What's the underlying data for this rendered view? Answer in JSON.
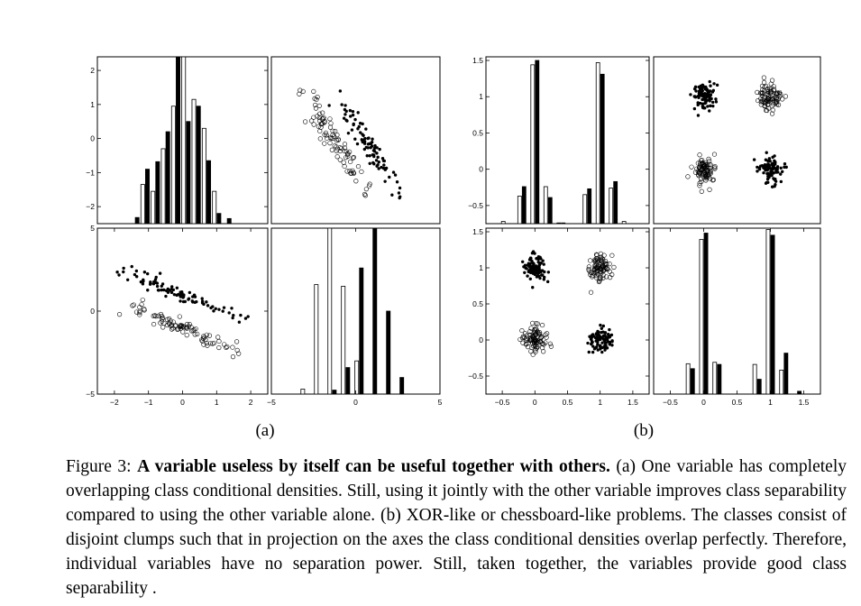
{
  "chart_data": [
    {
      "id": "a",
      "panel_label": "(a)",
      "type": "scatter-matrix",
      "classes": [
        "open circles",
        "filled dots"
      ],
      "panels": [
        {
          "pos": "top-left",
          "type": "bar",
          "x_range": [
            -2.5,
            2.5
          ],
          "y_range": [
            -2.5,
            2.4
          ],
          "y_ticks": [
            -2,
            -1,
            0,
            1,
            2
          ],
          "y_tick_labels": [
            "−2",
            "−1",
            "0",
            "1",
            "2"
          ],
          "x_ticks": [],
          "baseline": -2.5,
          "bars": [
            {
              "x": -1.4,
              "open": -2.5,
              "filled": -2.32
            },
            {
              "x": -1.1,
              "open": -1.35,
              "filled": -0.9
            },
            {
              "x": -0.8,
              "open": -1.55,
              "filled": -0.68
            },
            {
              "x": -0.5,
              "open": -0.3,
              "filled": 0.2
            },
            {
              "x": -0.2,
              "open": 0.95,
              "filled": 2.4
            },
            {
              "x": 0.1,
              "open": 2.4,
              "filled": 0.5
            },
            {
              "x": 0.4,
              "open": 1.15,
              "filled": 0.95
            },
            {
              "x": 0.7,
              "open": 0.3,
              "filled": -0.65
            },
            {
              "x": 1.0,
              "open": -1.55,
              "filled": -2.2
            },
            {
              "x": 1.3,
              "open": -2.5,
              "filled": -2.35
            }
          ]
        },
        {
          "pos": "top-right",
          "type": "scatter",
          "x_range": [
            -5,
            5
          ],
          "y_range": [
            -2.5,
            2.5
          ],
          "x_ticks": [],
          "y_ticks": [],
          "clusters": [
            {
              "style": "open",
              "n": 90,
              "x0": -3.3,
              "y0": 1.5,
              "x1": 0.7,
              "y1": -1.5,
              "spread": 0.2,
              "seed": 11
            },
            {
              "style": "filled",
              "n": 90,
              "x0": -1.3,
              "y0": 1.4,
              "x1": 2.7,
              "y1": -1.6,
              "spread": 0.2,
              "seed": 23
            }
          ]
        },
        {
          "pos": "bottom-left",
          "type": "scatter",
          "x_range": [
            -2.5,
            2.5
          ],
          "y_range": [
            -5,
            5
          ],
          "x_ticks": [
            -2,
            -1,
            0,
            1,
            2
          ],
          "x_tick_labels": [
            "−2",
            "−1",
            "0",
            "1",
            "2"
          ],
          "y_ticks": [
            -5,
            0,
            5
          ],
          "y_tick_labels": [
            "−5",
            "0",
            "5"
          ],
          "clusters": [
            {
              "style": "filled",
              "n": 90,
              "x0": -1.8,
              "y0": 2.5,
              "x1": 1.8,
              "y1": -0.5,
              "spread": 0.18,
              "seed": 37
            },
            {
              "style": "open",
              "n": 90,
              "x0": -1.5,
              "y0": 0.3,
              "x1": 1.7,
              "y1": -2.5,
              "spread": 0.18,
              "seed": 41
            }
          ]
        },
        {
          "pos": "bottom-right",
          "type": "bar",
          "x_range": [
            -5,
            5
          ],
          "y_range": [
            0,
            5
          ],
          "x_ticks": [
            -5,
            0,
            5
          ],
          "x_tick_labels": [
            "−5",
            "0",
            "5"
          ],
          "y_ticks": [],
          "baseline": 0,
          "bars": [
            {
              "x": -3.0,
              "open": 0.15,
              "filled": 0
            },
            {
              "x": -2.2,
              "open": 3.3,
              "filled": 0
            },
            {
              "x": -1.4,
              "open": 5.0,
              "filled": 0.12
            },
            {
              "x": -0.6,
              "open": 3.25,
              "filled": 0.8
            },
            {
              "x": 0.2,
              "open": 1.0,
              "filled": 3.8
            },
            {
              "x": 1.0,
              "open": 0,
              "filled": 5.0
            },
            {
              "x": 1.8,
              "open": 0,
              "filled": 2.5
            },
            {
              "x": 2.6,
              "open": 0,
              "filled": 0.5
            }
          ]
        }
      ]
    },
    {
      "id": "b",
      "panel_label": "(b)",
      "type": "scatter-matrix",
      "classes": [
        "open circles",
        "filled dots"
      ],
      "panels": [
        {
          "pos": "top-left",
          "type": "bar",
          "x_range": [
            -0.75,
            1.75
          ],
          "y_range": [
            -0.75,
            1.55
          ],
          "y_ticks": [
            -0.5,
            0,
            0.5,
            1,
            1.5
          ],
          "y_tick_labels": [
            "−0.5",
            "0",
            "0.5",
            "1",
            "1.5"
          ],
          "x_ticks": [],
          "baseline": -0.75,
          "bars": [
            {
              "x": -0.45,
              "open": -0.72,
              "filled": -0.75
            },
            {
              "x": -0.2,
              "open": -0.37,
              "filled": -0.24
            },
            {
              "x": 0.0,
              "open": 1.44,
              "filled": 1.5
            },
            {
              "x": 0.2,
              "open": -0.24,
              "filled": -0.39
            },
            {
              "x": 0.4,
              "open": -0.74,
              "filled": -0.74
            },
            {
              "x": 0.8,
              "open": -0.35,
              "filled": -0.27
            },
            {
              "x": 1.0,
              "open": 1.47,
              "filled": 1.31
            },
            {
              "x": 1.2,
              "open": -0.26,
              "filled": -0.17
            },
            {
              "x": 1.4,
              "open": -0.72,
              "filled": -0.75
            }
          ]
        },
        {
          "pos": "top-right",
          "type": "scatter",
          "x_range": [
            -0.75,
            1.75
          ],
          "y_range": [
            -0.75,
            1.55
          ],
          "x_ticks": [],
          "y_ticks": [],
          "clumps": [
            {
              "style": "filled",
              "n": 90,
              "cx": 0.0,
              "cy": 1.0,
              "sd": 0.09,
              "seed": 53
            },
            {
              "style": "open",
              "n": 90,
              "cx": 1.0,
              "cy": 1.0,
              "sd": 0.09,
              "seed": 59
            },
            {
              "style": "open",
              "n": 90,
              "cx": 0.0,
              "cy": 0.0,
              "sd": 0.09,
              "seed": 61
            },
            {
              "style": "filled",
              "n": 90,
              "cx": 1.0,
              "cy": 0.0,
              "sd": 0.09,
              "seed": 67
            }
          ]
        },
        {
          "pos": "bottom-left",
          "type": "scatter",
          "x_range": [
            -0.75,
            1.75
          ],
          "y_range": [
            -0.75,
            1.55
          ],
          "x_ticks": [
            -0.5,
            0,
            0.5,
            1,
            1.5
          ],
          "x_tick_labels": [
            "−0.5",
            "0",
            "0.5",
            "1",
            "1.5"
          ],
          "y_ticks": [
            -0.5,
            0,
            0.5,
            1,
            1.5
          ],
          "y_tick_labels": [
            "−0.5",
            "0",
            "0.5",
            "1",
            "1.5"
          ],
          "clumps": [
            {
              "style": "filled",
              "n": 90,
              "cx": 0.0,
              "cy": 1.0,
              "sd": 0.09,
              "seed": 71
            },
            {
              "style": "open",
              "n": 90,
              "cx": 1.0,
              "cy": 1.0,
              "sd": 0.09,
              "seed": 73
            },
            {
              "style": "open",
              "n": 90,
              "cx": 0.0,
              "cy": 0.0,
              "sd": 0.09,
              "seed": 79
            },
            {
              "style": "filled",
              "n": 90,
              "cx": 1.0,
              "cy": 0.0,
              "sd": 0.09,
              "seed": 83
            }
          ]
        },
        {
          "pos": "bottom-right",
          "type": "bar",
          "x_range": [
            -0.75,
            1.75
          ],
          "y_range": [
            -0.75,
            1.6
          ],
          "x_ticks": [
            -0.5,
            0,
            0.5,
            1,
            1.5
          ],
          "x_tick_labels": [
            "−0.5",
            "0",
            "0.5",
            "1",
            "1.5"
          ],
          "y_ticks": [],
          "baseline": -0.75,
          "bars": [
            {
              "x": -0.2,
              "open": -0.32,
              "filled": -0.39
            },
            {
              "x": 0.0,
              "open": 1.44,
              "filled": 1.53
            },
            {
              "x": 0.2,
              "open": -0.3,
              "filled": -0.33
            },
            {
              "x": 0.8,
              "open": -0.33,
              "filled": -0.54
            },
            {
              "x": 1.0,
              "open": 1.58,
              "filled": 1.5
            },
            {
              "x": 1.2,
              "open": -0.41,
              "filled": -0.17
            },
            {
              "x": 1.4,
              "open": -0.75,
              "filled": -0.71
            }
          ]
        }
      ]
    }
  ],
  "caption": {
    "prefix": "Figure 3: ",
    "bold": "A variable useless by itself can be useful together with others.",
    "body": " (a) One variable has completely overlapping class conditional densities. Still, using it jointly with the other variable improves class separability compared to using the other variable alone. (b) XOR-like or chessboard-like problems. The classes consist of disjoint clumps such that in projection on the axes the class conditional densities overlap perfectly. Therefore, individual variables have no separation power. Still, taken together, the variables provide good class separability ."
  }
}
